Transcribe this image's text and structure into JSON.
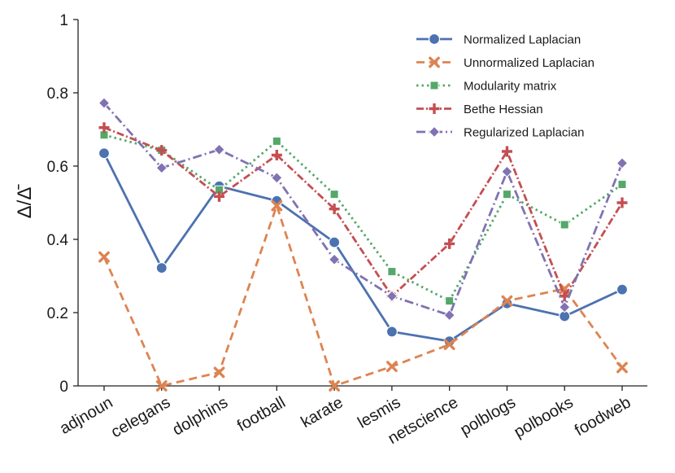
{
  "chart_data": {
    "type": "line",
    "title": "",
    "xlabel": "",
    "ylabel": "Δ/Δ̄",
    "ylim": [
      0,
      1
    ],
    "yticks": [
      {
        "value": 0,
        "label": "0"
      },
      {
        "value": 0.2,
        "label": "0.2"
      },
      {
        "value": 0.4,
        "label": "0.4"
      },
      {
        "value": 0.6,
        "label": "0.6"
      },
      {
        "value": 0.8,
        "label": "0.8"
      },
      {
        "value": 1,
        "label": "1"
      }
    ],
    "categories": [
      "adjnoun",
      "celegans",
      "dolphins",
      "football",
      "karate",
      "lesmis",
      "netscience",
      "polblogs",
      "polbooks",
      "foodweb"
    ],
    "grid": false,
    "legend_position": "top-right",
    "series": [
      {
        "name": "Normalized Laplacian",
        "color": "#4c72b0",
        "marker": "circle",
        "dash": "solid",
        "values": [
          0.635,
          0.322,
          0.545,
          0.505,
          0.392,
          0.148,
          0.122,
          0.225,
          0.19,
          0.263
        ]
      },
      {
        "name": "Unnormalized Laplacian",
        "color": "#dd8452",
        "marker": "x",
        "dash": "dashed",
        "values": [
          0.352,
          0.0,
          0.037,
          0.492,
          0.0,
          0.053,
          0.113,
          0.232,
          0.265,
          0.05
        ]
      },
      {
        "name": "Modularity matrix",
        "color": "#55a868",
        "marker": "square",
        "dash": "dotted",
        "values": [
          0.685,
          0.643,
          0.535,
          0.668,
          0.523,
          0.312,
          0.232,
          0.523,
          0.44,
          0.55
        ]
      },
      {
        "name": "Bethe Hessian",
        "color": "#c44e52",
        "marker": "plus",
        "dash": "dashdot-dense",
        "values": [
          0.705,
          0.643,
          0.517,
          0.63,
          0.483,
          0.245,
          0.388,
          0.64,
          0.245,
          0.5
        ]
      },
      {
        "name": "Regularized Laplacian",
        "color": "#8172b3",
        "marker": "diamond",
        "dash": "dashdot",
        "values": [
          0.772,
          0.595,
          0.645,
          0.568,
          0.345,
          0.245,
          0.193,
          0.585,
          0.215,
          0.608
        ]
      }
    ]
  }
}
